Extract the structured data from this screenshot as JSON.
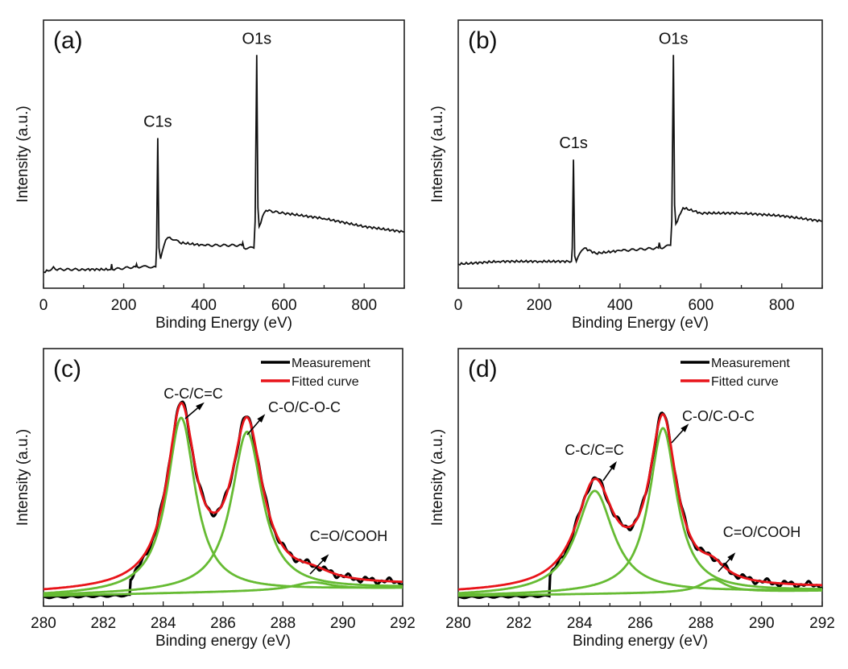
{
  "chart_data": [
    {
      "panel": "(a)",
      "type": "line",
      "xlabel": "Binding Energy (eV)",
      "ylabel": "Intensity (a.u.)",
      "xlim": [
        0,
        900
      ],
      "ylim": [
        0,
        1
      ],
      "xticks": [
        0,
        200,
        400,
        600,
        800
      ],
      "grid": false,
      "color": "#111111",
      "series": [
        {
          "x": [
            0,
            20,
            25,
            30,
            100,
            168,
            170,
            172,
            230,
            232,
            234,
            280,
            282,
            285,
            288,
            292,
            305,
            315,
            340,
            400,
            495,
            497,
            500,
            525,
            528,
            532,
            535,
            538,
            550,
            555,
            600,
            700,
            800,
            900
          ],
          "y": [
            0.06,
            0.07,
            0.08,
            0.07,
            0.07,
            0.07,
            0.09,
            0.07,
            0.08,
            0.09,
            0.08,
            0.08,
            0.15,
            0.56,
            0.15,
            0.11,
            0.18,
            0.19,
            0.17,
            0.16,
            0.16,
            0.17,
            0.15,
            0.15,
            0.25,
            0.87,
            0.3,
            0.23,
            0.28,
            0.29,
            0.28,
            0.26,
            0.23,
            0.21
          ]
        }
      ],
      "annotations": [
        {
          "text": "C1s",
          "x": 285
        },
        {
          "text": "O1s",
          "x": 532
        }
      ]
    },
    {
      "panel": "(b)",
      "type": "line",
      "xlabel": "Binding Energy (eV)",
      "ylabel": "Intensity (a.u.)",
      "xlim": [
        0,
        900
      ],
      "ylim": [
        0,
        1
      ],
      "xticks": [
        0,
        200,
        400,
        600,
        800
      ],
      "grid": false,
      "color": "#111111",
      "series": [
        {
          "x": [
            0,
            100,
            200,
            280,
            282,
            285,
            288,
            292,
            305,
            312,
            340,
            400,
            495,
            497,
            500,
            525,
            528,
            532,
            535,
            538,
            550,
            556,
            600,
            700,
            800,
            900
          ],
          "y": [
            0.09,
            0.1,
            0.1,
            0.1,
            0.15,
            0.48,
            0.12,
            0.1,
            0.14,
            0.15,
            0.13,
            0.14,
            0.15,
            0.17,
            0.15,
            0.16,
            0.25,
            0.87,
            0.31,
            0.24,
            0.28,
            0.3,
            0.28,
            0.28,
            0.27,
            0.25
          ]
        }
      ],
      "annotations": [
        {
          "text": "C1s",
          "x": 285
        },
        {
          "text": "O1s",
          "x": 532
        }
      ]
    },
    {
      "panel": "(c)",
      "type": "line",
      "xlabel": "Binding energy (eV)",
      "ylabel": "Intensity (a.u.)",
      "xlim": [
        280,
        292
      ],
      "ylim": [
        0,
        1
      ],
      "xticks": [
        280,
        282,
        284,
        286,
        288,
        290,
        292
      ],
      "grid": false,
      "legend": {
        "position": "top-right",
        "entries": [
          {
            "name": "Measurement",
            "color": "#000000"
          },
          {
            "name": "Fitted curve",
            "color": "#e8141a"
          }
        ]
      },
      "baseline": [
        0.05,
        0.08
      ],
      "components": [
        {
          "name": "C-C/C=C",
          "center": 284.6,
          "height": 0.68,
          "fwhm": 1.15,
          "color": "#66bb33"
        },
        {
          "name": "C-O/C-O-C",
          "center": 286.8,
          "height": 0.62,
          "fwhm": 1.25,
          "color": "#66bb33"
        },
        {
          "name": "C=O/COOH",
          "center": 289.0,
          "height": 0.03,
          "fwhm": 1.6,
          "color": "#66bb33"
        }
      ],
      "measurement_start": 282.9
    },
    {
      "panel": "(d)",
      "type": "line",
      "xlabel": "Binding energy (eV)",
      "ylabel": "Intensity (a.u.)",
      "xlim": [
        280,
        292
      ],
      "ylim": [
        0,
        1
      ],
      "xticks": [
        280,
        282,
        284,
        286,
        288,
        290,
        292
      ],
      "grid": false,
      "legend": {
        "position": "top-right",
        "entries": [
          {
            "name": "Measurement",
            "color": "#000000"
          },
          {
            "name": "Fitted curve",
            "color": "#e8141a"
          }
        ]
      },
      "baseline": [
        0.05,
        0.07
      ],
      "components": [
        {
          "name": "C-C/C=C",
          "center": 284.5,
          "height": 0.4,
          "fwhm": 1.5,
          "color": "#66bb33"
        },
        {
          "name": "C-O/C-O-C",
          "center": 286.75,
          "height": 0.64,
          "fwhm": 1.1,
          "color": "#66bb33"
        },
        {
          "name": "C=O/COOH",
          "center": 288.4,
          "height": 0.05,
          "fwhm": 1.0,
          "color": "#66bb33"
        }
      ],
      "measurement_start": 283.0
    }
  ]
}
